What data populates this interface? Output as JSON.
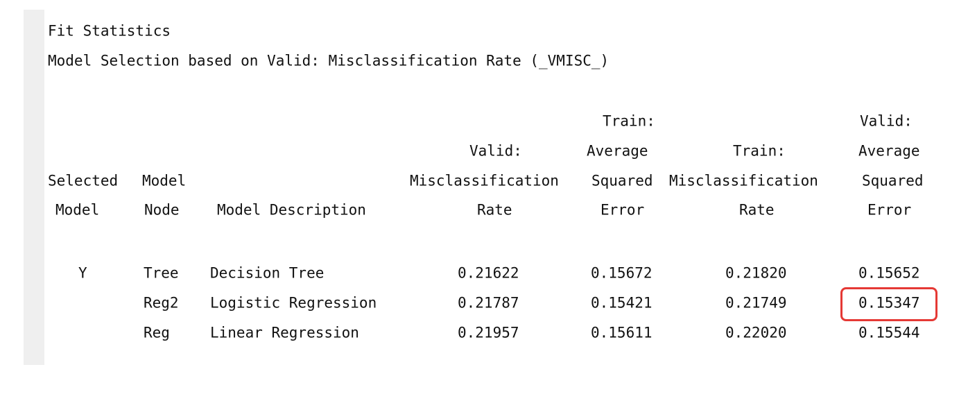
{
  "report": {
    "title": "Fit Statistics",
    "subtitle": "Model Selection based on Valid: Misclassification Rate (_VMISC_)"
  },
  "table": {
    "header_lines": [
      [
        "",
        "",
        "",
        "",
        "Train:",
        "",
        "Valid:"
      ],
      [
        "",
        "",
        "",
        "Valid:",
        "Average",
        "Train:",
        "Average"
      ],
      [
        "Selected",
        "Model",
        "",
        "Misclassification",
        "Squared",
        "Misclassification",
        "Squared"
      ],
      [
        "Model",
        "Node",
        "Model Description",
        "Rate",
        "Error",
        "Rate",
        "Error"
      ]
    ],
    "rows": [
      [
        "Y",
        "Tree",
        "Decision Tree",
        "0.21622",
        "0.15672",
        "0.21820",
        "0.15652"
      ],
      [
        "",
        "Reg2",
        "Logistic Regression",
        "0.21787",
        "0.15421",
        "0.21749",
        "0.15347"
      ],
      [
        "",
        "Reg",
        "Linear Regression",
        "0.21957",
        "0.15611",
        "0.22020",
        "0.15544"
      ]
    ]
  },
  "highlight": {
    "color": "#e53935",
    "target": "Valid: Average Squared Error for Reg2 = 0.15347"
  }
}
